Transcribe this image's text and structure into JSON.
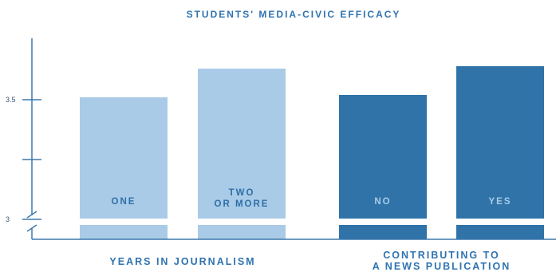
{
  "chart_data": {
    "type": "bar",
    "title": "STUDENTS' MEDIA-CIVIC EFFICACY",
    "ylim": [
      2.85,
      3.85
    ],
    "yticks": [
      {
        "value": 3.5,
        "label": "3.5"
      },
      {
        "value": 3.25,
        "label": ""
      },
      {
        "value": 3,
        "label": "3"
      }
    ],
    "axis_break": true,
    "grid": false,
    "groups": [
      {
        "label_lines": [
          "YEARS IN JOURNALISM"
        ],
        "bar_indices": [
          0,
          1
        ]
      },
      {
        "label_lines": [
          "CONTRIBUTING TO",
          "A NEWS PUBLICATION"
        ],
        "bar_indices": [
          2,
          3
        ]
      }
    ],
    "bars": [
      {
        "label_lines": [
          "ONE"
        ],
        "value": 3.51,
        "color": "#a9cbe7",
        "label_color": "#2f6fa8"
      },
      {
        "label_lines": [
          "TWO",
          "OR MORE"
        ],
        "value": 3.63,
        "color": "#a9cbe7",
        "label_color": "#2f6fa8"
      },
      {
        "label_lines": [
          "NO"
        ],
        "value": 3.52,
        "color": "#2f73a8",
        "label_color": "#a9cbe7"
      },
      {
        "label_lines": [
          "YES"
        ],
        "value": 3.64,
        "color": "#2f73a8",
        "label_color": "#a9cbe7"
      }
    ],
    "colors": {
      "text": "#2f73b0",
      "axis": "#3d79ae"
    }
  }
}
